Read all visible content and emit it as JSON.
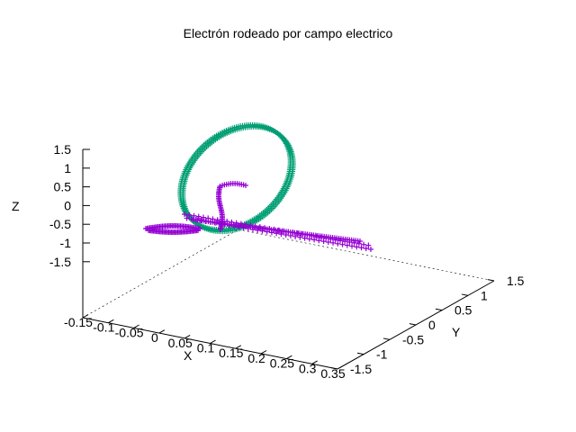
{
  "chart_data": {
    "type": "scatter",
    "projection": "3d",
    "title": "Electrón rodeado por campo electrico",
    "xlabel": "X",
    "ylabel": "Y",
    "zlabel": "Z",
    "x_ticks": [
      "-0.15",
      "-0.1",
      "-0.05",
      "0",
      "0.05",
      "0.1",
      "0.15",
      "0.2",
      "0.25",
      "0.3",
      "0.35"
    ],
    "y_ticks": [
      "-1.5",
      "-1",
      "-0.5",
      "0",
      "0.5",
      "1",
      "1.5"
    ],
    "z_ticks": [
      "1.5",
      "1",
      "0.5",
      "0",
      "-0.5",
      "-1",
      "-1.5"
    ],
    "xlim": [
      -0.15,
      0.35
    ],
    "ylim": [
      -1.5,
      1.5
    ],
    "zlim": [
      -1.5,
      1.5
    ],
    "marker": "+",
    "legend": "none",
    "series": [
      {
        "color": "#009e73",
        "description_points": [
          {
            "x": 0.1,
            "y": 0.0,
            "z": 0.0
          }
        ]
      },
      {
        "color": "#9400d3"
      }
    ]
  }
}
